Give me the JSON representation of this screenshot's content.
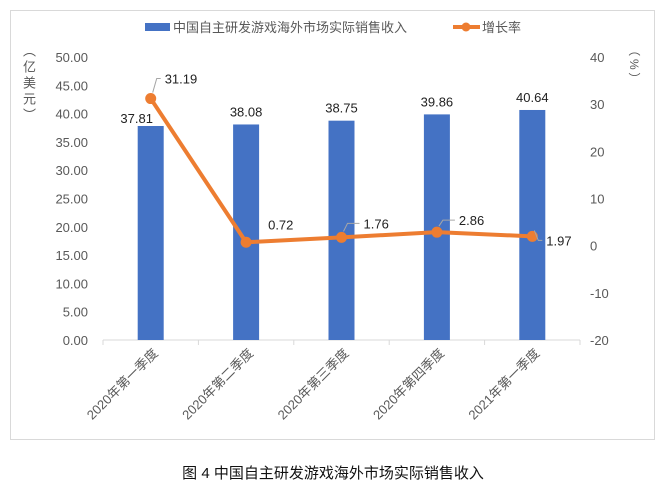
{
  "chart_data": {
    "type": "bar+line",
    "caption": "图 4  中国自主研发游戏海外市场实际销售收入",
    "categories": [
      "2020年第一季度",
      "2020年第二季度",
      "2020年第三季度",
      "2020年第四季度",
      "2021年第一季度"
    ],
    "series": [
      {
        "name": "中国自主研发游戏海外市场实际销售收入",
        "type": "bar",
        "axis": "left",
        "color": "#4472C4",
        "values": [
          37.81,
          38.08,
          38.75,
          39.86,
          40.64
        ]
      },
      {
        "name": "增长率",
        "type": "line",
        "axis": "right",
        "color": "#ED7D31",
        "values": [
          31.19,
          0.72,
          1.76,
          2.86,
          1.97
        ]
      }
    ],
    "ylabel_left": "（亿美元）",
    "ylabel_right": "（%）",
    "ylim_left": [
      0,
      50
    ],
    "ylim_right": [
      -20,
      40
    ],
    "yticks_left": [
      "0.00",
      "5.00",
      "10.00",
      "15.00",
      "20.00",
      "25.00",
      "30.00",
      "35.00",
      "40.00",
      "45.00",
      "50.00"
    ],
    "yticks_right": [
      "-20",
      "-10",
      "0",
      "10",
      "20",
      "30",
      "40"
    ],
    "grid": false,
    "legend": "top"
  }
}
